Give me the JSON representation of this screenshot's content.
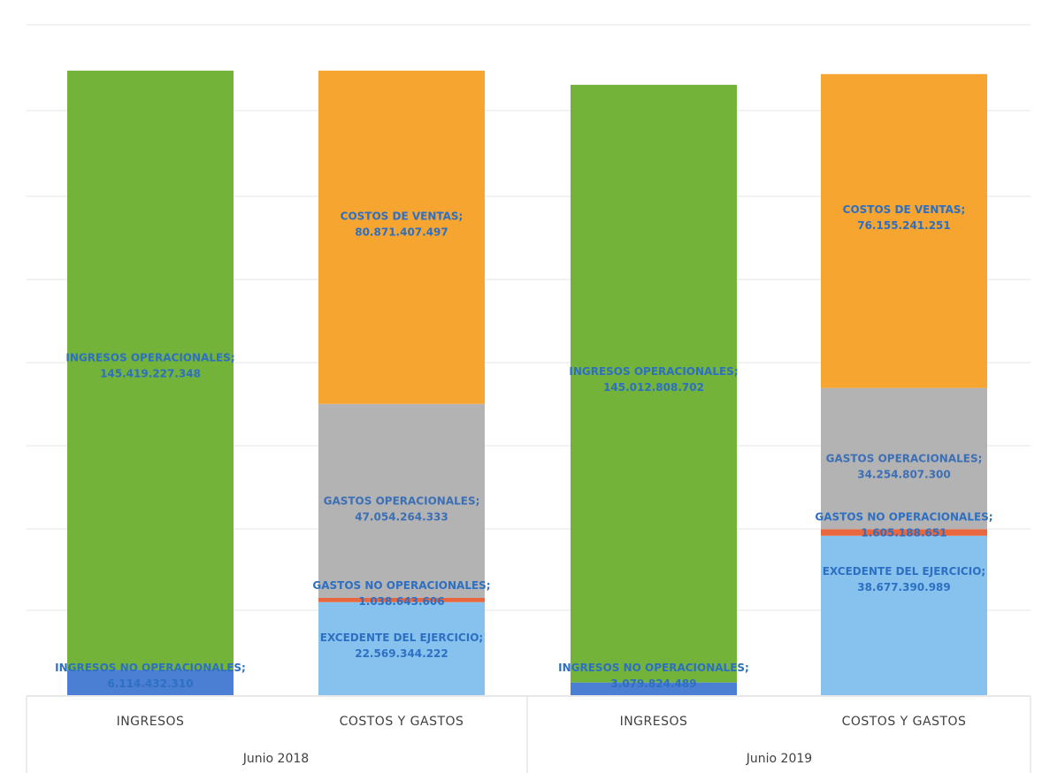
{
  "chart_data": {
    "type": "bar",
    "stacked": true,
    "colors": {
      "INGRESOS OPERACIONALES": "#73b33a",
      "INGRESOS NO OPERACIONALES": "#4a7fd4",
      "COSTOS DE VENTAS": "#f7a531",
      "GASTOS OPERACIONALES": "#b3b3b3",
      "GASTOS NO OPERACIONALES": "#e9673f",
      "EXCEDENTE DEL EJERCICIO": "#87c2ef"
    },
    "label_colors": {
      "INGRESOS OPERACIONALES": "#2d6fc2",
      "INGRESOS NO OPERACIONALES": "#2d6fc2",
      "COSTOS DE VENTAS": "#2d6fc2",
      "GASTOS OPERACIONALES": "#3d6fb5",
      "GASTOS NO OPERACIONALES": "#2d6fc2",
      "EXCEDENTE DEL EJERCICIO": "#2d6fc2"
    },
    "groups": [
      "Junio 2018",
      "Junio 2019"
    ],
    "categories": [
      "INGRESOS",
      "COSTOS Y GASTOS",
      "INGRESOS",
      "COSTOS Y GASTOS"
    ],
    "bars": [
      {
        "group": "Junio 2018",
        "category": "INGRESOS",
        "segments": [
          {
            "name": "INGRESOS NO OPERACIONALES",
            "value": 6114432310,
            "label": "6.114.432.310"
          },
          {
            "name": "INGRESOS OPERACIONALES",
            "value": 145419227348,
            "label": "145.419.227.348"
          }
        ]
      },
      {
        "group": "Junio 2018",
        "category": "COSTOS Y GASTOS",
        "segments": [
          {
            "name": "EXCEDENTE DEL EJERCICIO",
            "value": 22569344222,
            "label": "22.569.344.222"
          },
          {
            "name": "GASTOS NO OPERACIONALES",
            "value": 1038643606,
            "label": "1.038.643.606"
          },
          {
            "name": "GASTOS OPERACIONALES",
            "value": 47054264333,
            "label": "47.054.264.333"
          },
          {
            "name": "COSTOS DE VENTAS",
            "value": 80871407497,
            "label": "80.871.407.497"
          }
        ]
      },
      {
        "group": "Junio 2019",
        "category": "INGRESOS",
        "segments": [
          {
            "name": "INGRESOS NO OPERACIONALES",
            "value": 3079824489,
            "label": "3.079.824.489"
          },
          {
            "name": "INGRESOS OPERACIONALES",
            "value": 145012808702,
            "label": "145.012.808.702"
          }
        ]
      },
      {
        "group": "Junio 2019",
        "category": "COSTOS Y GASTOS",
        "segments": [
          {
            "name": "EXCEDENTE DEL EJERCICIO",
            "value": 38677390989,
            "label": "38.677.390.989"
          },
          {
            "name": "GASTOS NO OPERACIONALES",
            "value": 1605188651,
            "label": "1.605.188.651"
          },
          {
            "name": "GASTOS OPERACIONALES",
            "value": 34254807300,
            "label": "34.254.807.300"
          },
          {
            "name": "COSTOS DE VENTAS",
            "value": 76155241251,
            "label": "76.155.241.251"
          }
        ]
      }
    ],
    "ylim": [
      0,
      160000000000
    ],
    "gridlines": [
      0,
      20000000000,
      40000000000,
      60000000000,
      80000000000,
      100000000000,
      120000000000,
      140000000000,
      160000000000
    ],
    "grid": true,
    "legend": "none",
    "title": "",
    "xlabel": "",
    "ylabel": ""
  }
}
